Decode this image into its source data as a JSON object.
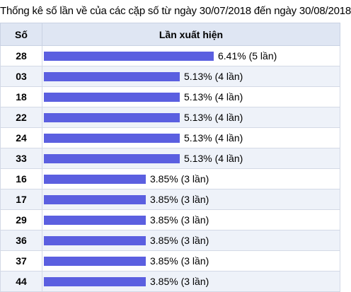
{
  "page": {
    "title": "Thống kê số lần về của các cặp số từ ngày 30/07/2018 đến ngày 30/08/2018"
  },
  "table": {
    "col_number": "Số",
    "col_count": "Lần xuất hiện",
    "colors": {
      "bar": "#5b5fe0",
      "header_bg": "#dfe6f3",
      "stripe_bg": "#eef2f9"
    }
  },
  "chart_data": {
    "type": "bar",
    "orientation": "horizontal",
    "categories": [
      "28",
      "03",
      "18",
      "22",
      "24",
      "33",
      "16",
      "17",
      "29",
      "36",
      "37",
      "44"
    ],
    "values": [
      6.41,
      5.13,
      5.13,
      5.13,
      5.13,
      5.13,
      3.85,
      3.85,
      3.85,
      3.85,
      3.85,
      3.85
    ],
    "counts": [
      5,
      4,
      4,
      4,
      4,
      4,
      3,
      3,
      3,
      3,
      3,
      3
    ],
    "labels": [
      "6.41% (5 lần)",
      "5.13% (4 lần)",
      "5.13% (4 lần)",
      "5.13% (4 lần)",
      "5.13% (4 lần)",
      "5.13% (4 lần)",
      "3.85% (3 lần)",
      "3.85% (3 lần)",
      "3.85% (3 lần)",
      "3.85% (3 lần)",
      "3.85% (3 lần)",
      "3.85% (3 lần)"
    ],
    "title": "Thống kê số lần về của các cặp số từ ngày 30/07/2018 đến ngày 30/08/2018"
  }
}
